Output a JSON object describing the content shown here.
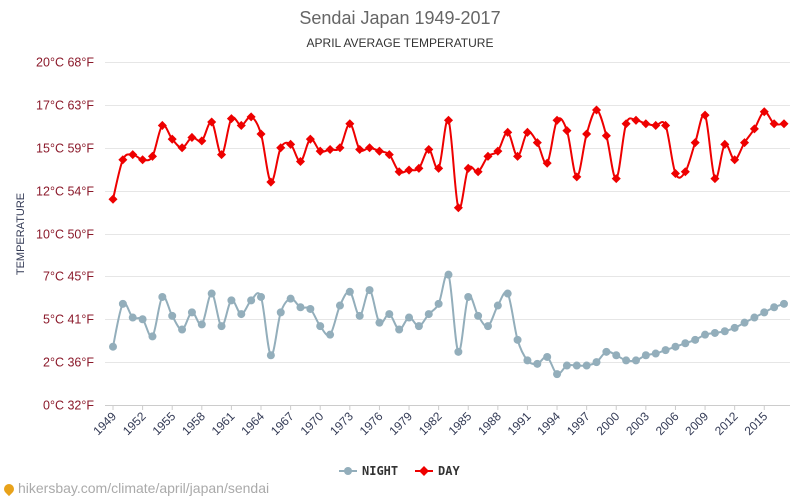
{
  "chart_data": {
    "type": "line",
    "title": "Sendai Japan 1949-2017",
    "subtitle": "APRIL AVERAGE TEMPERATURE",
    "ylabel": "TEMPERATURE",
    "ylim": [
      0,
      20
    ],
    "yticks": [
      {
        "value": 0,
        "label": "0°C 32°F"
      },
      {
        "value": 2.5,
        "label": "2°C 36°F"
      },
      {
        "value": 5,
        "label": "5°C 41°F"
      },
      {
        "value": 7.5,
        "label": "7°C 45°F"
      },
      {
        "value": 10,
        "label": "10°C 50°F"
      },
      {
        "value": 12.5,
        "label": "12°C 54°F"
      },
      {
        "value": 15,
        "label": "15°C 59°F"
      },
      {
        "value": 17.5,
        "label": "17°C 63°F"
      },
      {
        "value": 20,
        "label": "20°C 68°F"
      }
    ],
    "xlim": [
      1949,
      2017
    ],
    "xticks": [
      1949,
      1952,
      1955,
      1958,
      1961,
      1964,
      1967,
      1970,
      1973,
      1976,
      1979,
      1982,
      1985,
      1988,
      1991,
      1994,
      1997,
      2000,
      2003,
      2006,
      2009,
      2012,
      2015
    ],
    "x": [
      1949,
      1950,
      1951,
      1952,
      1953,
      1954,
      1955,
      1956,
      1957,
      1958,
      1959,
      1960,
      1961,
      1962,
      1963,
      1964,
      1965,
      1966,
      1967,
      1968,
      1969,
      1970,
      1971,
      1972,
      1973,
      1974,
      1975,
      1976,
      1977,
      1978,
      1979,
      1980,
      1981,
      1982,
      1983,
      1984,
      1985,
      1986,
      1987,
      1988,
      1989,
      1990,
      1991,
      1992,
      1993,
      1994,
      1995,
      1996,
      1997,
      1998,
      1999,
      2000,
      2001,
      2002,
      2003,
      2004,
      2005,
      2006,
      2007,
      2008,
      2009,
      2010,
      2011,
      2012,
      2013,
      2014,
      2015,
      2016,
      2017
    ],
    "series": [
      {
        "name": "NIGHT",
        "color": "#93aebb",
        "values": [
          3.4,
          5.9,
          5.1,
          5.0,
          4.0,
          6.3,
          5.2,
          4.4,
          5.4,
          4.7,
          6.5,
          4.6,
          6.1,
          5.3,
          6.1,
          6.3,
          2.9,
          5.4,
          6.2,
          5.7,
          5.6,
          4.6,
          4.1,
          5.8,
          6.6,
          5.2,
          6.7,
          4.8,
          5.3,
          4.4,
          5.1,
          4.6,
          5.3,
          5.9,
          7.6,
          3.1,
          6.3,
          5.2,
          4.6,
          5.8,
          6.5,
          3.8,
          2.6,
          2.4,
          2.8,
          1.8,
          2.3,
          2.3,
          2.3,
          2.5,
          3.1,
          2.9,
          2.6,
          2.6,
          2.9,
          3.0,
          3.2,
          3.4,
          3.6,
          3.8,
          4.1,
          4.2,
          4.3,
          4.5,
          4.8,
          5.1,
          5.4,
          5.7,
          5.9
        ]
      },
      {
        "name": "DAY",
        "color": "#ee0000",
        "values": [
          12.0,
          14.3,
          14.6,
          14.3,
          14.5,
          16.3,
          15.5,
          15.0,
          15.6,
          15.4,
          16.5,
          14.6,
          16.7,
          16.3,
          16.8,
          15.8,
          13.0,
          15.0,
          15.2,
          14.2,
          15.5,
          14.8,
          14.9,
          15.0,
          16.4,
          14.9,
          15.0,
          14.8,
          14.6,
          13.6,
          13.7,
          13.8,
          14.9,
          13.8,
          16.6,
          11.5,
          13.8,
          13.6,
          14.5,
          14.8,
          15.9,
          14.5,
          15.9,
          15.3,
          14.1,
          16.6,
          16.0,
          13.3,
          15.8,
          17.2,
          15.7,
          13.2,
          16.4,
          16.6,
          16.4,
          16.3,
          16.3,
          13.5,
          13.6,
          15.3,
          16.9,
          13.2,
          15.2,
          14.3,
          15.3,
          16.1,
          17.1,
          16.4,
          16.4
        ]
      }
    ],
    "legend": "bottom",
    "grid": true
  },
  "source": {
    "text": "hikersbay.com/climate/april/japan/sendai"
  }
}
